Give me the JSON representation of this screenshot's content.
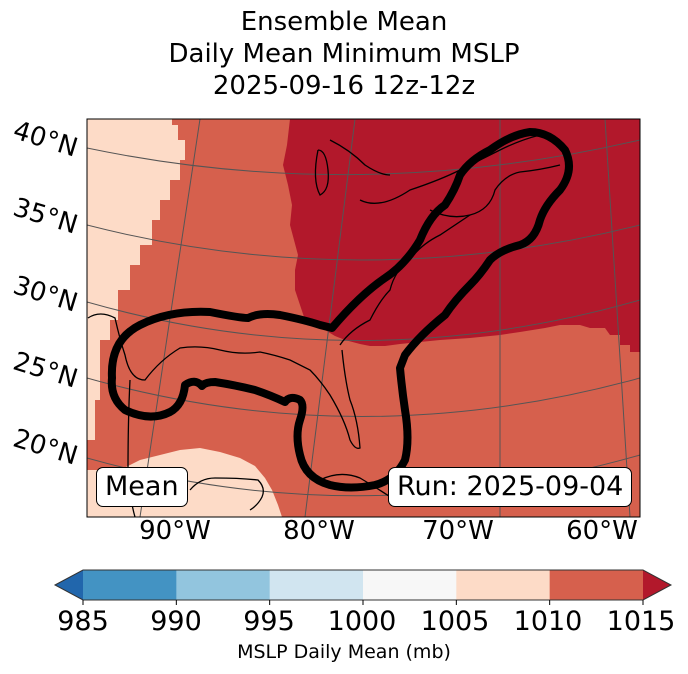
{
  "title": {
    "line1": "Ensemble Mean",
    "line2": "Daily Mean Minimum MSLP",
    "line3": "2025-09-16 12z-12z"
  },
  "map": {
    "projection": "Lambert Conformal",
    "region": "Eastern North America, Gulf of Mexico, Western Atlantic",
    "lat_labels": [
      "40°N",
      "35°N",
      "30°N",
      "25°N",
      "20°N"
    ],
    "lon_labels": [
      "90°W",
      "80°W",
      "70°W",
      "60°W"
    ],
    "contour_description": "Thick black outline enclosing Gulf of Mexico coast and the US East Coast / Canadian Maritimes corridor",
    "annotation_left": "Mean",
    "annotation_right": "Run: 2025-09-04",
    "fill_levels": [
      {
        "range": "1005-1010",
        "color": "#fddbc7",
        "region": "western edge and Yucatán/south"
      },
      {
        "range": "1010-1015",
        "color": "#d6604d",
        "region": "central band, Gulf, Atlantic south"
      },
      {
        "range": ">1015",
        "color": "#b2182b",
        "region": "Great Lakes, Northeast US, Atlantic north"
      }
    ]
  },
  "colorbar": {
    "label": "MSLP Daily Mean (mb)",
    "ticks": [
      "985",
      "990",
      "995",
      "1000",
      "1005",
      "1010",
      "1015"
    ],
    "under_color": "#2166ac",
    "over_color": "#b2182b",
    "bins": [
      {
        "from": 985,
        "to": 990,
        "color": "#4393c3"
      },
      {
        "from": 990,
        "to": 995,
        "color": "#92c5de"
      },
      {
        "from": 995,
        "to": 1000,
        "color": "#d1e5f0"
      },
      {
        "from": 1000,
        "to": 1005,
        "color": "#f7f7f7"
      },
      {
        "from": 1005,
        "to": 1010,
        "color": "#fddbc7"
      },
      {
        "from": 1010,
        "to": 1015,
        "color": "#d6604d"
      }
    ]
  }
}
